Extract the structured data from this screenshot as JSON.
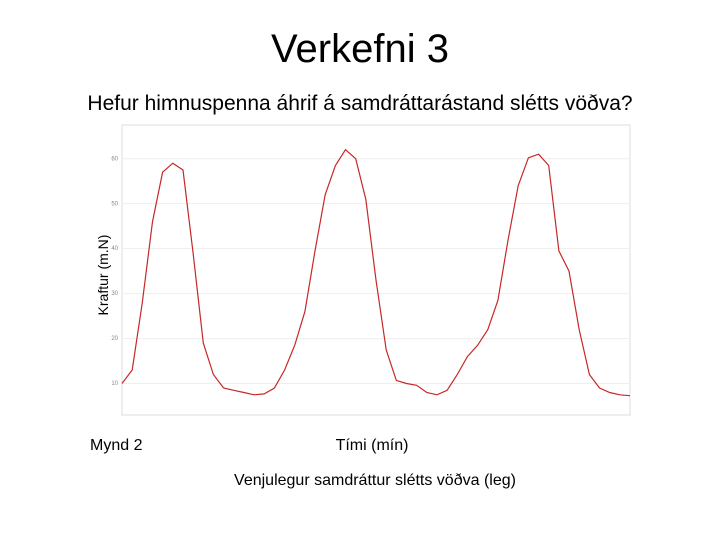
{
  "title": "Verkefni 3",
  "subtitle": "Hefur himnuspenna áhrif á samdráttarástand slétts vöðva?",
  "caption": "Mynd 2",
  "footnote": "Venjulegur samdráttur slétts vöðva (leg)",
  "chart_data": {
    "type": "line",
    "x_label": "Tími (mín)",
    "y_label": "Kraftur (m.N)",
    "ylim": [
      3,
      67.5
    ],
    "yticks": [
      10,
      20,
      30,
      40,
      50,
      60
    ],
    "grid": true,
    "series": [
      {
        "color": "#c62828",
        "values": [
          10,
          13,
          28,
          46,
          57,
          59,
          57.5,
          39,
          19,
          12,
          9,
          8.5,
          8,
          7.5,
          7.7,
          9,
          13,
          18.5,
          26,
          39.5,
          52,
          58.5,
          62,
          60,
          51,
          33,
          17.5,
          10.7,
          10,
          9.6,
          8,
          7.5,
          8.5,
          12,
          16,
          18.5,
          22,
          28.5,
          42,
          54,
          60.2,
          61,
          58.5,
          39.5,
          35,
          22,
          12,
          9,
          8,
          7.5,
          7.3
        ]
      }
    ]
  }
}
